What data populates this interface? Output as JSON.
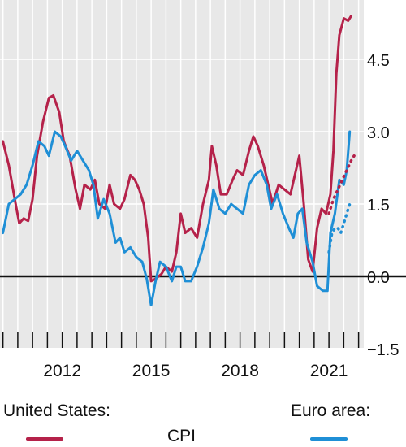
{
  "chart_data": {
    "type": "line",
    "x_tick_labels": [
      "2012",
      "2015",
      "2018",
      "2021"
    ],
    "x_ticks_at": [
      2012,
      2015,
      2018,
      2021
    ],
    "y_tick_labels": [
      "4.5",
      "3.0",
      "1.5",
      "0.0",
      "−1.5"
    ],
    "y_ticks_at": [
      4.5,
      3.0,
      1.5,
      0.0,
      -1.5
    ],
    "xlim": [
      2009.9,
      2023.6
    ],
    "ylim": [
      -1.55,
      5.7
    ],
    "grid": "vertical minor lines, horizontal lines at y ticks",
    "zero_line": true,
    "colors": {
      "background": "#e8e8e8",
      "grid": "#ffffff",
      "us": "#b5224a",
      "euro": "#1f8fd6",
      "zero": "#111111"
    },
    "series": [
      {
        "name": "United States: CPI",
        "color": "#b5224a",
        "style": "solid",
        "points": [
          [
            2010.0,
            2.8
          ],
          [
            2010.2,
            2.3
          ],
          [
            2010.4,
            1.6
          ],
          [
            2010.55,
            1.1
          ],
          [
            2010.7,
            1.2
          ],
          [
            2010.85,
            1.15
          ],
          [
            2011.0,
            1.6
          ],
          [
            2011.15,
            2.5
          ],
          [
            2011.35,
            3.2
          ],
          [
            2011.55,
            3.7
          ],
          [
            2011.7,
            3.75
          ],
          [
            2011.9,
            3.4
          ],
          [
            2012.05,
            2.8
          ],
          [
            2012.25,
            2.5
          ],
          [
            2012.45,
            1.8
          ],
          [
            2012.6,
            1.4
          ],
          [
            2012.75,
            1.9
          ],
          [
            2012.95,
            1.8
          ],
          [
            2013.1,
            2.0
          ],
          [
            2013.25,
            1.5
          ],
          [
            2013.45,
            1.4
          ],
          [
            2013.6,
            1.9
          ],
          [
            2013.75,
            1.5
          ],
          [
            2013.95,
            1.4
          ],
          [
            2014.1,
            1.6
          ],
          [
            2014.3,
            2.1
          ],
          [
            2014.45,
            2.0
          ],
          [
            2014.6,
            1.8
          ],
          [
            2014.75,
            1.5
          ],
          [
            2014.9,
            0.8
          ],
          [
            2015.0,
            -0.1
          ],
          [
            2015.15,
            -0.05
          ],
          [
            2015.35,
            0.05
          ],
          [
            2015.5,
            0.2
          ],
          [
            2015.7,
            0.1
          ],
          [
            2015.85,
            0.5
          ],
          [
            2016.0,
            1.3
          ],
          [
            2016.15,
            0.9
          ],
          [
            2016.35,
            1.0
          ],
          [
            2016.55,
            0.8
          ],
          [
            2016.75,
            1.5
          ],
          [
            2016.95,
            2.0
          ],
          [
            2017.05,
            2.7
          ],
          [
            2017.2,
            2.3
          ],
          [
            2017.35,
            1.7
          ],
          [
            2017.55,
            1.7
          ],
          [
            2017.75,
            2.0
          ],
          [
            2017.9,
            2.2
          ],
          [
            2018.1,
            2.1
          ],
          [
            2018.3,
            2.6
          ],
          [
            2018.45,
            2.9
          ],
          [
            2018.6,
            2.7
          ],
          [
            2018.8,
            2.3
          ],
          [
            2018.95,
            1.9
          ],
          [
            2019.1,
            1.5
          ],
          [
            2019.3,
            1.9
          ],
          [
            2019.5,
            1.8
          ],
          [
            2019.7,
            1.7
          ],
          [
            2019.85,
            2.1
          ],
          [
            2020.0,
            2.5
          ],
          [
            2020.15,
            1.5
          ],
          [
            2020.3,
            0.35
          ],
          [
            2020.45,
            0.1
          ],
          [
            2020.6,
            1.0
          ],
          [
            2020.75,
            1.4
          ],
          [
            2020.9,
            1.3
          ],
          [
            2021.05,
            1.7
          ],
          [
            2021.15,
            2.6
          ],
          [
            2021.25,
            4.2
          ],
          [
            2021.35,
            5.0
          ],
          [
            2021.5,
            5.35
          ],
          [
            2021.65,
            5.3
          ],
          [
            2021.75,
            5.4
          ]
        ]
      },
      {
        "name": "Euro area: CPI",
        "color": "#1f8fd6",
        "style": "solid",
        "points": [
          [
            2010.0,
            0.9
          ],
          [
            2010.2,
            1.5
          ],
          [
            2010.4,
            1.6
          ],
          [
            2010.6,
            1.7
          ],
          [
            2010.8,
            1.9
          ],
          [
            2011.0,
            2.3
          ],
          [
            2011.2,
            2.8
          ],
          [
            2011.4,
            2.7
          ],
          [
            2011.55,
            2.5
          ],
          [
            2011.75,
            3.0
          ],
          [
            2011.95,
            2.9
          ],
          [
            2012.1,
            2.7
          ],
          [
            2012.3,
            2.4
          ],
          [
            2012.5,
            2.6
          ],
          [
            2012.7,
            2.4
          ],
          [
            2012.9,
            2.2
          ],
          [
            2013.05,
            1.9
          ],
          [
            2013.2,
            1.2
          ],
          [
            2013.4,
            1.6
          ],
          [
            2013.6,
            1.3
          ],
          [
            2013.8,
            0.7
          ],
          [
            2013.95,
            0.8
          ],
          [
            2014.1,
            0.5
          ],
          [
            2014.3,
            0.6
          ],
          [
            2014.5,
            0.4
          ],
          [
            2014.7,
            0.3
          ],
          [
            2014.85,
            -0.05
          ],
          [
            2015.0,
            -0.6
          ],
          [
            2015.15,
            -0.1
          ],
          [
            2015.3,
            0.3
          ],
          [
            2015.5,
            0.2
          ],
          [
            2015.7,
            -0.1
          ],
          [
            2015.85,
            0.2
          ],
          [
            2016.0,
            0.2
          ],
          [
            2016.15,
            -0.1
          ],
          [
            2016.35,
            -0.1
          ],
          [
            2016.55,
            0.2
          ],
          [
            2016.75,
            0.6
          ],
          [
            2016.95,
            1.1
          ],
          [
            2017.1,
            1.8
          ],
          [
            2017.3,
            1.4
          ],
          [
            2017.5,
            1.3
          ],
          [
            2017.7,
            1.5
          ],
          [
            2017.9,
            1.4
          ],
          [
            2018.1,
            1.3
          ],
          [
            2018.3,
            1.9
          ],
          [
            2018.5,
            2.1
          ],
          [
            2018.7,
            2.2
          ],
          [
            2018.9,
            1.9
          ],
          [
            2019.05,
            1.4
          ],
          [
            2019.25,
            1.7
          ],
          [
            2019.45,
            1.3
          ],
          [
            2019.65,
            1.0
          ],
          [
            2019.8,
            0.8
          ],
          [
            2019.95,
            1.3
          ],
          [
            2020.1,
            1.4
          ],
          [
            2020.25,
            0.7
          ],
          [
            2020.45,
            0.3
          ],
          [
            2020.6,
            -0.2
          ],
          [
            2020.8,
            -0.3
          ],
          [
            2020.95,
            -0.3
          ],
          [
            2021.05,
            0.9
          ],
          [
            2021.2,
            1.3
          ],
          [
            2021.35,
            2.0
          ],
          [
            2021.5,
            1.9
          ],
          [
            2021.6,
            2.2
          ],
          [
            2021.7,
            3.0
          ]
        ]
      },
      {
        "name": "United States: dotted",
        "color": "#b5224a",
        "style": "dotted",
        "points": [
          [
            2021.0,
            1.3
          ],
          [
            2021.15,
            1.6
          ],
          [
            2021.3,
            1.8
          ],
          [
            2021.45,
            2.0
          ],
          [
            2021.6,
            2.2
          ],
          [
            2021.75,
            2.4
          ],
          [
            2021.85,
            2.5
          ]
        ]
      },
      {
        "name": "Euro area: dotted",
        "color": "#1f8fd6",
        "style": "dotted",
        "points": [
          [
            2021.0,
            0.5
          ],
          [
            2021.1,
            0.9
          ],
          [
            2021.2,
            1.0
          ],
          [
            2021.3,
            1.0
          ],
          [
            2021.4,
            0.9
          ],
          [
            2021.5,
            1.1
          ],
          [
            2021.6,
            1.3
          ],
          [
            2021.7,
            1.5
          ]
        ]
      }
    ]
  },
  "legend": {
    "us_label": "United States:",
    "euro_label": "Euro area:",
    "cpi_label": "CPI"
  }
}
